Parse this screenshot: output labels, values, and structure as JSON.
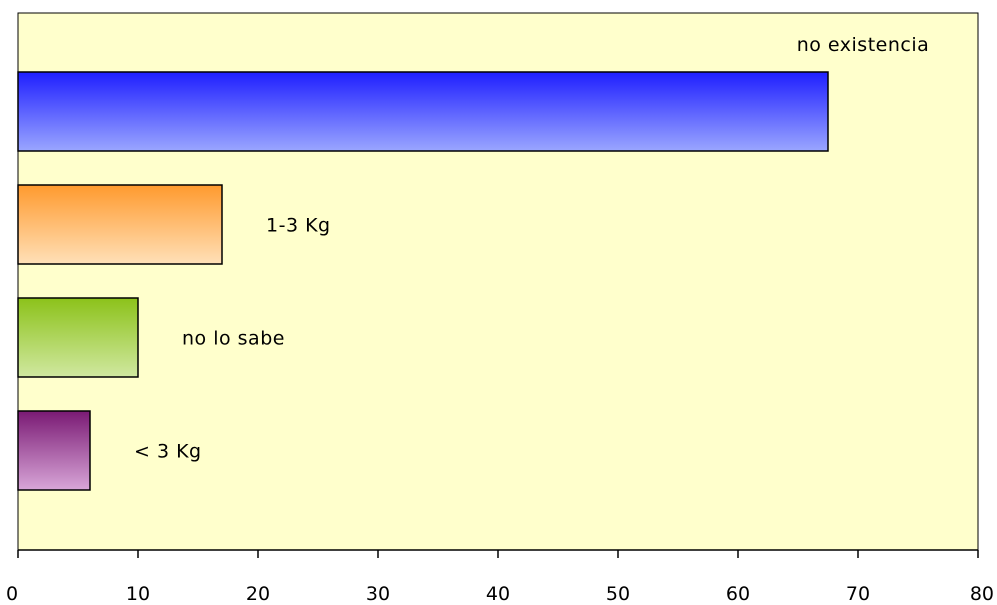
{
  "chart_data": {
    "type": "bar",
    "orientation": "horizontal",
    "title": "",
    "xlabel": "",
    "ylabel": "",
    "xlim": [
      0,
      80
    ],
    "xticks": [
      0,
      10,
      20,
      30,
      40,
      50,
      60,
      70,
      80
    ],
    "grid": false,
    "legend": "none",
    "plot_background": "#FFFFCC",
    "bars": [
      {
        "label": "no existencia",
        "value": 67.5,
        "color_top": "#1F1FFF",
        "color_bottom": "#9AA6FF",
        "label_position": "above"
      },
      {
        "label": "1-3 Kg",
        "value": 17,
        "color_top": "#FF9A2E",
        "color_bottom": "#FFE0B8",
        "label_position": "right"
      },
      {
        "label": "no lo sabe",
        "value": 10,
        "color_top": "#8CC21A",
        "color_bottom": "#D0E8A0",
        "label_position": "right"
      },
      {
        "label": "< 3 Kg",
        "value": 6,
        "color_top": "#7A1A74",
        "color_bottom": "#D8A6D8",
        "label_position": "right"
      }
    ]
  }
}
